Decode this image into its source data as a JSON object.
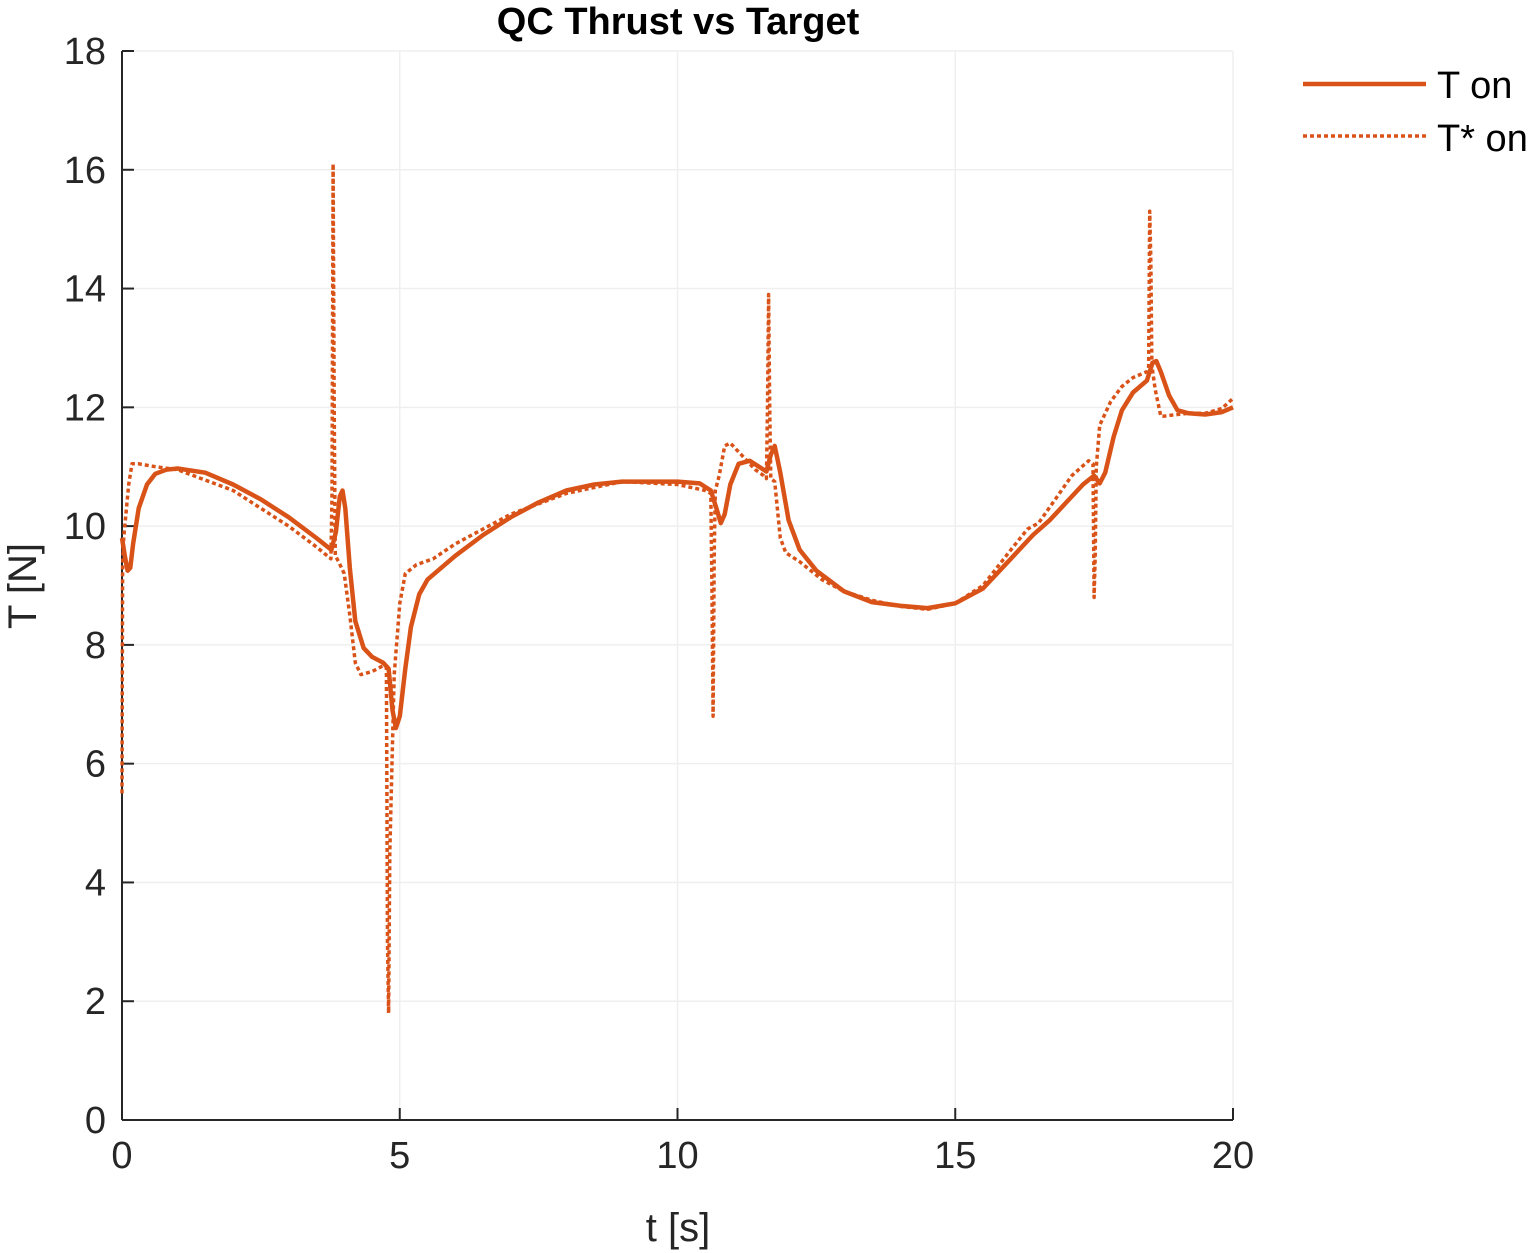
{
  "chart_data": {
    "type": "line",
    "title": "QC Thrust vs Target",
    "xlabel": "t [s]",
    "ylabel": "T [N]",
    "xlim": [
      0,
      20
    ],
    "ylim": [
      0,
      18
    ],
    "xticks": [
      0,
      5,
      10,
      15,
      20
    ],
    "yticks": [
      0,
      2,
      4,
      6,
      8,
      10,
      12,
      14,
      16,
      18
    ],
    "grid": true,
    "legend_position": "outside-top-right",
    "color": "#D95319",
    "series": [
      {
        "name": "T on",
        "style": "solid",
        "x": [
          0,
          0.05,
          0.1,
          0.15,
          0.2,
          0.3,
          0.45,
          0.6,
          0.8,
          1.0,
          1.5,
          2.0,
          2.5,
          3.0,
          3.5,
          3.77,
          3.85,
          3.92,
          3.97,
          4.02,
          4.1,
          4.2,
          4.35,
          4.5,
          4.7,
          4.8,
          4.87,
          4.93,
          5.0,
          5.1,
          5.2,
          5.35,
          5.5,
          6.0,
          6.5,
          7.0,
          7.5,
          8.0,
          8.5,
          9.0,
          9.5,
          10.0,
          10.4,
          10.6,
          10.7,
          10.78,
          10.85,
          10.95,
          11.1,
          11.3,
          11.5,
          11.6,
          11.68,
          11.75,
          11.85,
          12.0,
          12.2,
          12.5,
          13.0,
          13.5,
          14.0,
          14.5,
          15.0,
          15.5,
          16.0,
          16.4,
          16.7,
          17.0,
          17.3,
          17.5,
          17.6,
          17.7,
          17.85,
          18.0,
          18.2,
          18.45,
          18.55,
          18.62,
          18.7,
          18.85,
          19.0,
          19.2,
          19.5,
          19.8,
          20.0
        ],
        "y": [
          9.8,
          9.5,
          9.25,
          9.3,
          9.7,
          10.3,
          10.7,
          10.88,
          10.95,
          10.97,
          10.9,
          10.7,
          10.45,
          10.15,
          9.8,
          9.6,
          9.9,
          10.5,
          10.6,
          10.3,
          9.3,
          8.4,
          7.95,
          7.8,
          7.7,
          7.6,
          6.9,
          6.6,
          6.8,
          7.6,
          8.3,
          8.85,
          9.1,
          9.5,
          9.85,
          10.15,
          10.4,
          10.6,
          10.7,
          10.75,
          10.75,
          10.75,
          10.72,
          10.6,
          10.3,
          10.05,
          10.2,
          10.7,
          11.05,
          11.1,
          10.98,
          10.92,
          11.2,
          11.35,
          10.9,
          10.1,
          9.6,
          9.25,
          8.9,
          8.72,
          8.66,
          8.62,
          8.7,
          8.95,
          9.45,
          9.85,
          10.1,
          10.4,
          10.7,
          10.85,
          10.72,
          10.9,
          11.5,
          11.95,
          12.25,
          12.45,
          12.75,
          12.78,
          12.6,
          12.2,
          11.95,
          11.9,
          11.88,
          11.92,
          12.0
        ]
      },
      {
        "name": "T* on",
        "style": "dotted",
        "x": [
          0,
          0.01,
          0.03,
          0.07,
          0.12,
          0.18,
          0.3,
          0.6,
          1.0,
          2.0,
          3.0,
          3.5,
          3.76,
          3.78,
          3.8,
          3.82,
          3.84,
          3.9,
          4.0,
          4.1,
          4.2,
          4.3,
          4.5,
          4.7,
          4.76,
          4.78,
          4.8,
          4.82,
          4.9,
          5.0,
          5.1,
          5.3,
          5.6,
          6.0,
          7.0,
          8.0,
          9.0,
          10.0,
          10.5,
          10.6,
          10.62,
          10.64,
          10.66,
          10.68,
          10.75,
          10.85,
          10.95,
          11.05,
          11.2,
          11.4,
          11.55,
          11.6,
          11.62,
          11.64,
          11.66,
          11.68,
          11.75,
          11.85,
          11.95,
          12.2,
          12.6,
          13.0,
          13.5,
          14.0,
          14.5,
          15.0,
          15.5,
          16.0,
          16.3,
          16.5,
          16.8,
          17.1,
          17.4,
          17.48,
          17.5,
          17.52,
          17.54,
          17.6,
          17.8,
          18.0,
          18.2,
          18.45,
          18.48,
          18.5,
          18.52,
          18.54,
          18.6,
          18.7,
          18.75,
          18.9,
          19.2,
          19.5,
          19.8,
          20.0
        ],
        "y": [
          5.5,
          9.3,
          9.8,
          10.2,
          10.7,
          11.05,
          11.05,
          11.0,
          10.95,
          10.6,
          10.0,
          9.65,
          9.45,
          10.5,
          16.1,
          12.0,
          9.5,
          9.4,
          9.2,
          8.5,
          7.7,
          7.5,
          7.55,
          7.65,
          7.62,
          3.0,
          1.8,
          4.5,
          7.5,
          8.7,
          9.2,
          9.35,
          9.45,
          9.7,
          10.2,
          10.55,
          10.75,
          10.7,
          10.6,
          10.55,
          9.0,
          6.8,
          9.5,
          10.6,
          10.85,
          11.35,
          11.4,
          11.3,
          11.15,
          10.95,
          10.85,
          10.8,
          12.0,
          13.9,
          12.0,
          10.8,
          10.75,
          9.8,
          9.55,
          9.4,
          9.1,
          8.9,
          8.75,
          8.65,
          8.6,
          8.7,
          9.0,
          9.6,
          9.95,
          10.05,
          10.45,
          10.85,
          11.1,
          11.05,
          8.8,
          9.5,
          11.0,
          11.7,
          12.1,
          12.35,
          12.5,
          12.6,
          12.65,
          15.3,
          14.5,
          12.7,
          12.3,
          11.85,
          11.85,
          11.87,
          11.9,
          11.9,
          11.98,
          12.15
        ]
      }
    ]
  }
}
